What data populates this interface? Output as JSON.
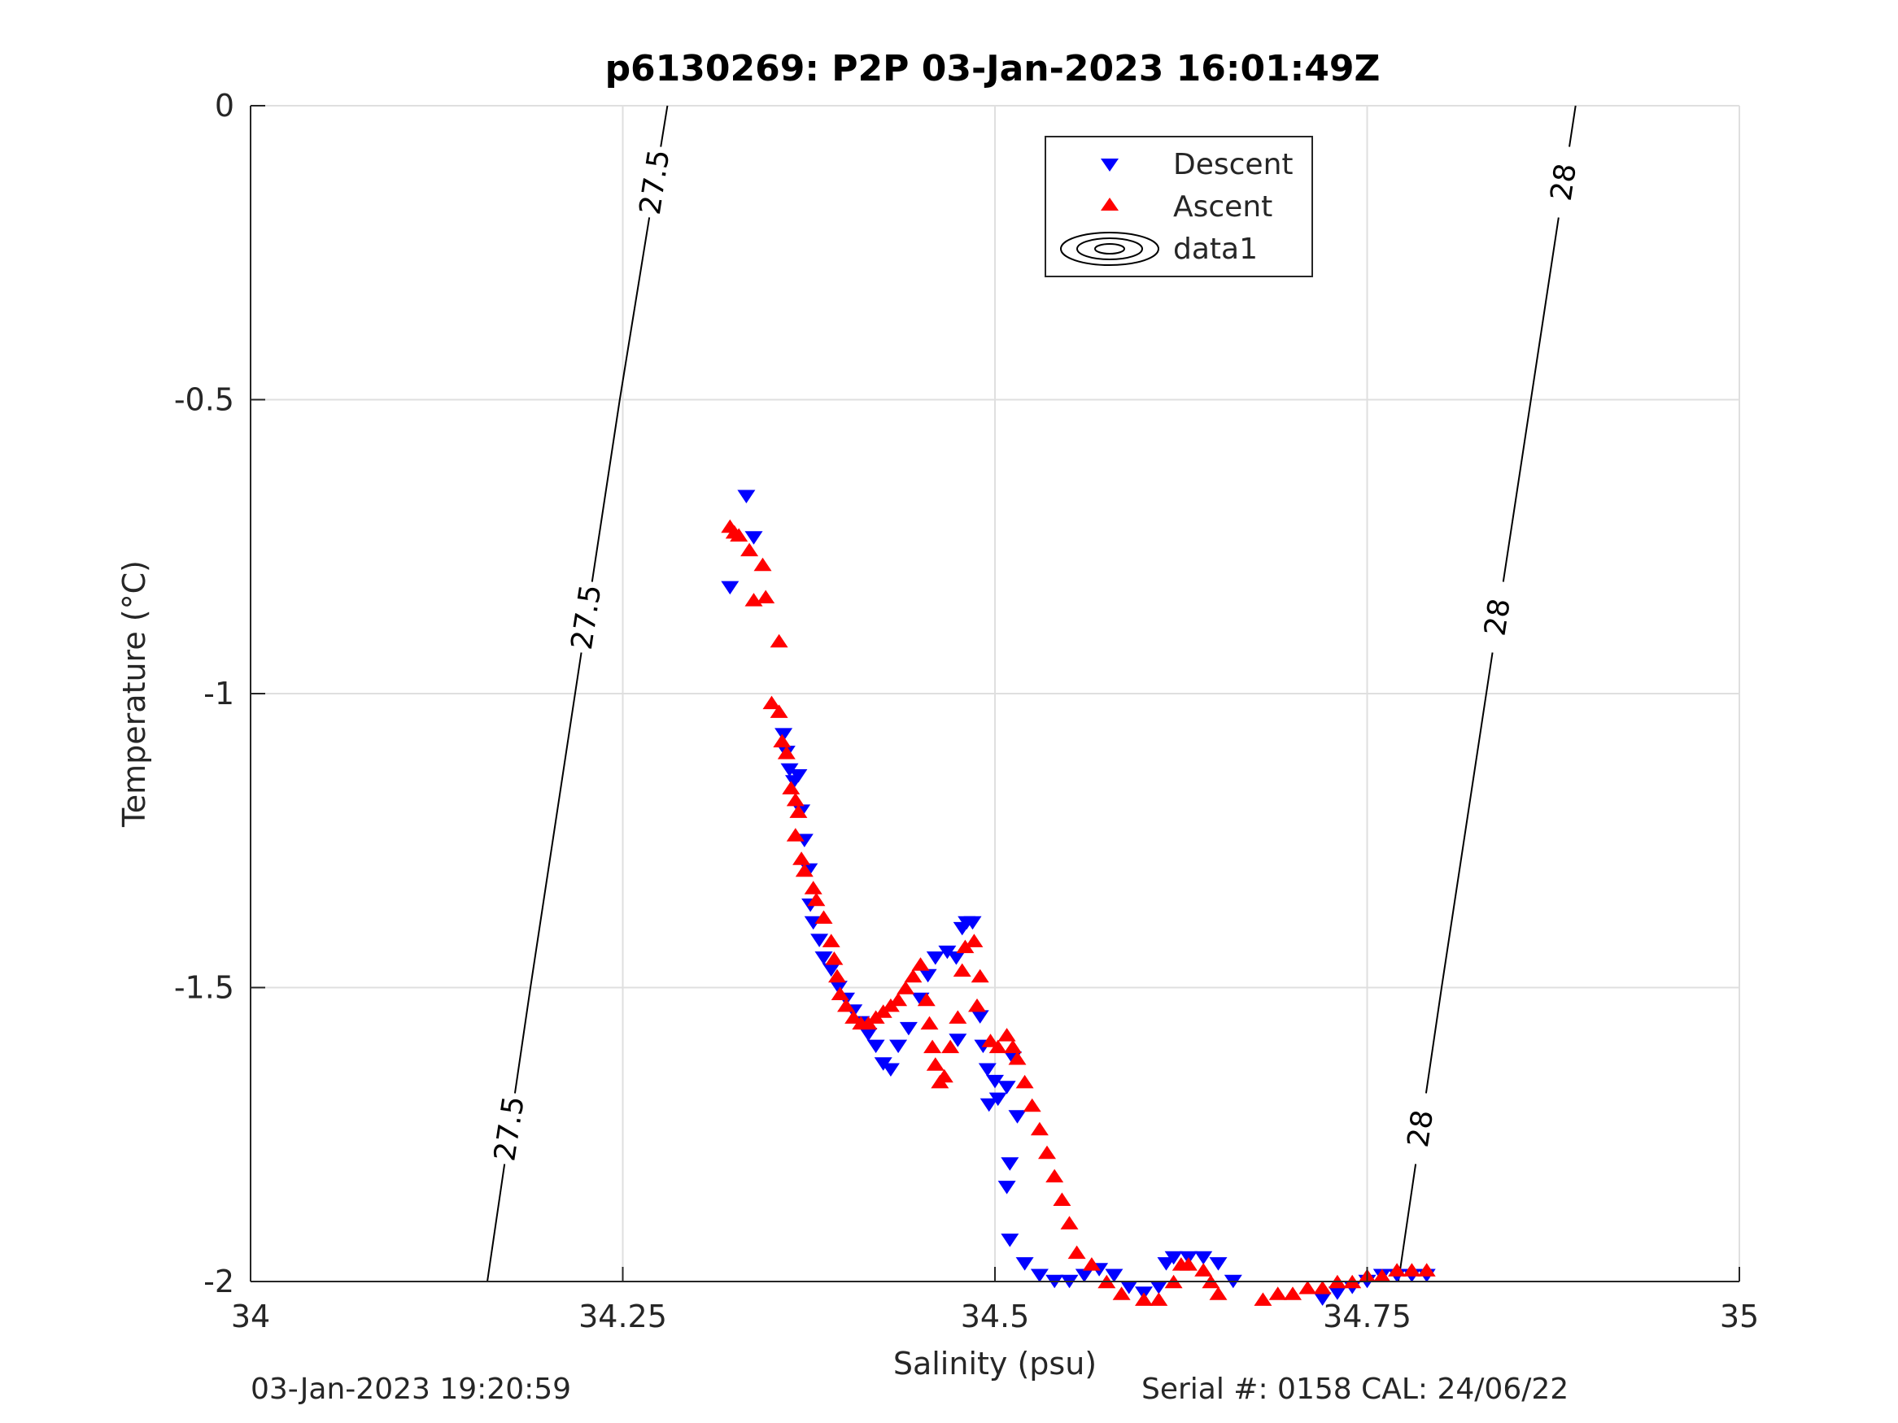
{
  "chart_data": {
    "type": "scatter",
    "title": "p6130269: P2P 03-Jan-2023 16:01:49Z",
    "xlabel": "Salinity (psu)",
    "ylabel": "Temperature (°C)",
    "xlim": [
      34,
      35
    ],
    "ylim": [
      -2,
      0
    ],
    "xticks": [
      34,
      34.25,
      34.5,
      34.75,
      35
    ],
    "xtick_labels": [
      "34",
      "34.25",
      "34.5",
      "34.75",
      "35"
    ],
    "yticks": [
      0,
      -0.5,
      -1,
      -1.5,
      -2
    ],
    "ytick_labels": [
      "0",
      "-0.5",
      "-1",
      "-1.5",
      "-2"
    ],
    "grid": true,
    "legend_position": "top-center",
    "legend": [
      "Descent",
      "Ascent",
      "data1"
    ],
    "contours": [
      {
        "label": "27.5",
        "points": [
          [
            34.159,
            -2
          ],
          [
            34.188,
            -1.5
          ],
          [
            34.218,
            -1
          ],
          [
            34.248,
            -0.5
          ],
          [
            34.28,
            0
          ]
        ]
      },
      {
        "label": "28",
        "points": [
          [
            34.771,
            -2
          ],
          [
            34.8,
            -1.5
          ],
          [
            34.83,
            -1
          ],
          [
            34.86,
            -0.5
          ],
          [
            34.89,
            0
          ]
        ]
      }
    ],
    "series": [
      {
        "name": "Descent",
        "marker": "triangle-down",
        "color": "#0000ff",
        "points": [
          [
            34.333,
            -0.665
          ],
          [
            34.338,
            -0.735
          ],
          [
            34.322,
            -0.82
          ],
          [
            34.358,
            -1.07
          ],
          [
            34.36,
            -1.1
          ],
          [
            34.362,
            -1.13
          ],
          [
            34.365,
            -1.15
          ],
          [
            34.368,
            -1.14
          ],
          [
            34.37,
            -1.2
          ],
          [
            34.372,
            -1.25
          ],
          [
            34.375,
            -1.3
          ],
          [
            34.376,
            -1.36
          ],
          [
            34.378,
            -1.39
          ],
          [
            34.382,
            -1.42
          ],
          [
            34.385,
            -1.45
          ],
          [
            34.39,
            -1.47
          ],
          [
            34.395,
            -1.5
          ],
          [
            34.4,
            -1.52
          ],
          [
            34.405,
            -1.54
          ],
          [
            34.41,
            -1.56
          ],
          [
            34.415,
            -1.58
          ],
          [
            34.42,
            -1.6
          ],
          [
            34.425,
            -1.63
          ],
          [
            34.43,
            -1.64
          ],
          [
            34.435,
            -1.6
          ],
          [
            34.442,
            -1.57
          ],
          [
            34.45,
            -1.52
          ],
          [
            34.455,
            -1.48
          ],
          [
            34.46,
            -1.45
          ],
          [
            34.468,
            -1.44
          ],
          [
            34.474,
            -1.45
          ],
          [
            34.478,
            -1.4
          ],
          [
            34.481,
            -1.39
          ],
          [
            34.485,
            -1.39
          ],
          [
            34.475,
            -1.59
          ],
          [
            34.49,
            -1.55
          ],
          [
            34.492,
            -1.6
          ],
          [
            34.495,
            -1.64
          ],
          [
            34.5,
            -1.66
          ],
          [
            34.496,
            -1.7
          ],
          [
            34.502,
            -1.69
          ],
          [
            34.508,
            -1.67
          ],
          [
            34.512,
            -1.62
          ],
          [
            34.515,
            -1.72
          ],
          [
            34.51,
            -1.8
          ],
          [
            34.508,
            -1.84
          ],
          [
            34.51,
            -1.93
          ],
          [
            34.52,
            -1.97
          ],
          [
            34.53,
            -1.99
          ],
          [
            34.54,
            -2.0
          ],
          [
            34.55,
            -2.0
          ],
          [
            34.56,
            -1.99
          ],
          [
            34.57,
            -1.98
          ],
          [
            34.58,
            -1.99
          ],
          [
            34.59,
            -2.01
          ],
          [
            34.6,
            -2.02
          ],
          [
            34.61,
            -2.01
          ],
          [
            34.615,
            -1.97
          ],
          [
            34.62,
            -1.96
          ],
          [
            34.63,
            -1.96
          ],
          [
            34.64,
            -1.96
          ],
          [
            34.65,
            -1.97
          ],
          [
            34.66,
            -2.0
          ],
          [
            34.67,
            -2.05
          ],
          [
            34.68,
            -2.06
          ],
          [
            34.69,
            -2.06
          ],
          [
            34.7,
            -2.05
          ],
          [
            34.71,
            -2.04
          ],
          [
            34.72,
            -2.03
          ],
          [
            34.73,
            -2.02
          ],
          [
            34.74,
            -2.01
          ],
          [
            34.75,
            -2.0
          ],
          [
            34.76,
            -1.99
          ],
          [
            34.77,
            -1.99
          ],
          [
            34.78,
            -1.99
          ],
          [
            34.79,
            -1.99
          ]
        ]
      },
      {
        "name": "Ascent",
        "marker": "triangle-up",
        "color": "#ff0000",
        "points": [
          [
            34.322,
            -0.715
          ],
          [
            34.325,
            -0.725
          ],
          [
            34.328,
            -0.73
          ],
          [
            34.335,
            -0.755
          ],
          [
            34.344,
            -0.78
          ],
          [
            34.346,
            -0.835
          ],
          [
            34.338,
            -0.84
          ],
          [
            34.355,
            -0.91
          ],
          [
            34.35,
            -1.015
          ],
          [
            34.355,
            -1.03
          ],
          [
            34.357,
            -1.08
          ],
          [
            34.36,
            -1.1
          ],
          [
            34.363,
            -1.16
          ],
          [
            34.366,
            -1.18
          ],
          [
            34.368,
            -1.2
          ],
          [
            34.366,
            -1.24
          ],
          [
            34.37,
            -1.28
          ],
          [
            34.372,
            -1.3
          ],
          [
            34.378,
            -1.33
          ],
          [
            34.38,
            -1.35
          ],
          [
            34.385,
            -1.38
          ],
          [
            34.39,
            -1.42
          ],
          [
            34.392,
            -1.45
          ],
          [
            34.394,
            -1.48
          ],
          [
            34.396,
            -1.51
          ],
          [
            34.4,
            -1.53
          ],
          [
            34.405,
            -1.55
          ],
          [
            34.41,
            -1.56
          ],
          [
            34.415,
            -1.56
          ],
          [
            34.42,
            -1.55
          ],
          [
            34.425,
            -1.54
          ],
          [
            34.43,
            -1.53
          ],
          [
            34.435,
            -1.52
          ],
          [
            34.44,
            -1.5
          ],
          [
            34.445,
            -1.48
          ],
          [
            34.45,
            -1.46
          ],
          [
            34.454,
            -1.52
          ],
          [
            34.456,
            -1.56
          ],
          [
            34.458,
            -1.6
          ],
          [
            34.46,
            -1.63
          ],
          [
            34.463,
            -1.66
          ],
          [
            34.466,
            -1.65
          ],
          [
            34.47,
            -1.6
          ],
          [
            34.475,
            -1.55
          ],
          [
            34.478,
            -1.47
          ],
          [
            34.48,
            -1.43
          ],
          [
            34.486,
            -1.42
          ],
          [
            34.488,
            -1.53
          ],
          [
            34.49,
            -1.48
          ],
          [
            34.497,
            -1.59
          ],
          [
            34.502,
            -1.6
          ],
          [
            34.508,
            -1.58
          ],
          [
            34.512,
            -1.6
          ],
          [
            34.515,
            -1.62
          ],
          [
            34.52,
            -1.66
          ],
          [
            34.525,
            -1.7
          ],
          [
            34.53,
            -1.74
          ],
          [
            34.535,
            -1.78
          ],
          [
            34.54,
            -1.82
          ],
          [
            34.545,
            -1.86
          ],
          [
            34.55,
            -1.9
          ],
          [
            34.555,
            -1.95
          ],
          [
            34.565,
            -1.97
          ],
          [
            34.575,
            -2.0
          ],
          [
            34.585,
            -2.02
          ],
          [
            34.6,
            -2.03
          ],
          [
            34.61,
            -2.03
          ],
          [
            34.62,
            -2.0
          ],
          [
            34.625,
            -1.97
          ],
          [
            34.63,
            -1.97
          ],
          [
            34.64,
            -1.98
          ],
          [
            34.645,
            -2.0
          ],
          [
            34.65,
            -2.02
          ],
          [
            34.66,
            -2.05
          ],
          [
            34.67,
            -2.04
          ],
          [
            34.68,
            -2.03
          ],
          [
            34.69,
            -2.02
          ],
          [
            34.7,
            -2.02
          ],
          [
            34.71,
            -2.01
          ],
          [
            34.72,
            -2.01
          ],
          [
            34.73,
            -2.0
          ],
          [
            34.74,
            -2.0
          ],
          [
            34.75,
            -1.99
          ],
          [
            34.76,
            -1.99
          ],
          [
            34.77,
            -1.98
          ],
          [
            34.78,
            -1.98
          ],
          [
            34.79,
            -1.98
          ]
        ]
      }
    ]
  },
  "footer": {
    "left": "03-Jan-2023 19:20:59",
    "right": "Serial #: 0158  CAL: 24/06/22"
  }
}
